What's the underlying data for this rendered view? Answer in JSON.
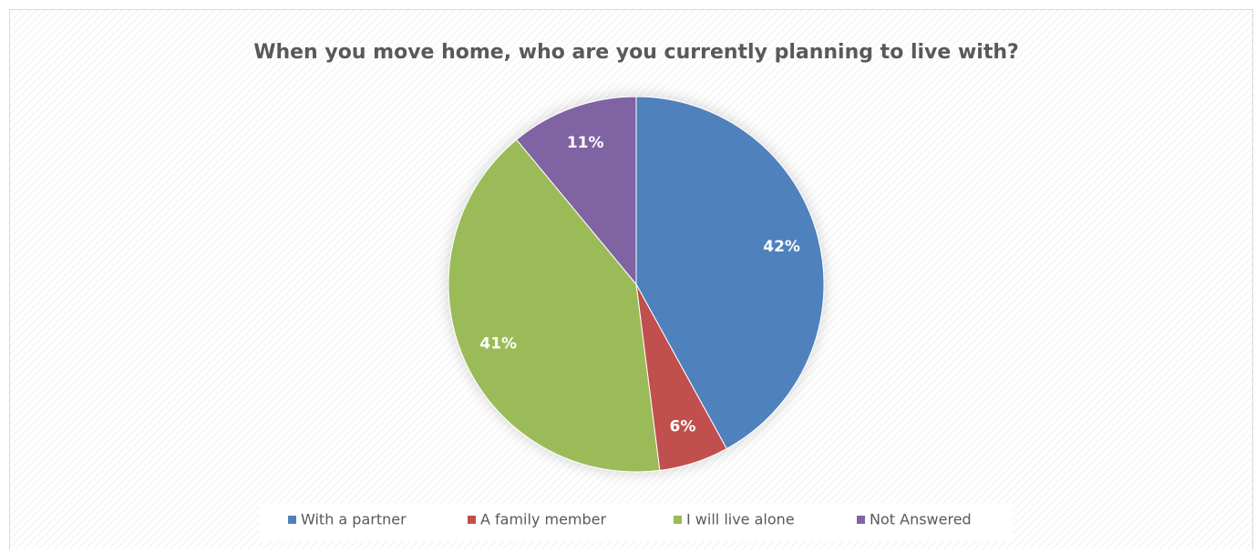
{
  "chart_data": {
    "type": "pie",
    "title": "When you move home, who are you currently planning to live with?",
    "categories": [
      "With a partner",
      "A family member",
      "I will live alone",
      "Not Answered"
    ],
    "values": [
      42,
      6,
      41,
      11
    ],
    "value_labels": [
      "42%",
      "6%",
      "41%",
      "11%"
    ],
    "colors": [
      "#4f81bd",
      "#c0504d",
      "#9bbb59",
      "#8064a2"
    ],
    "legend": "bottom"
  }
}
